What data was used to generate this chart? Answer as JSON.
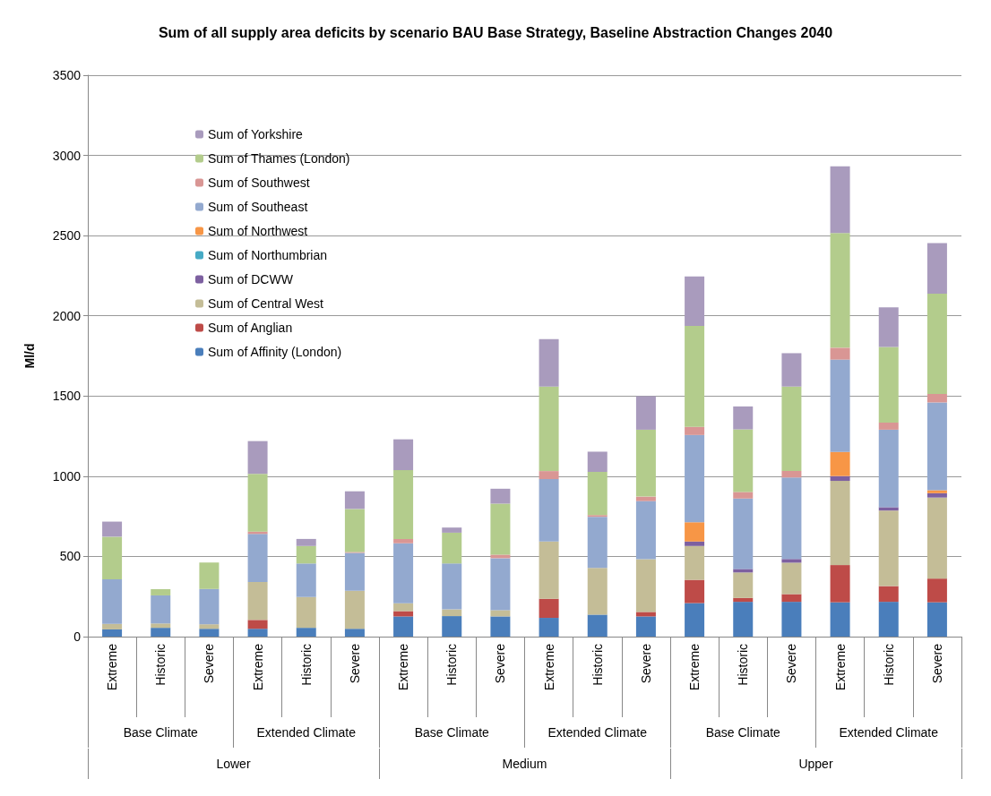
{
  "chart_data": {
    "type": "bar",
    "stacked": true,
    "title": "Sum of all supply area deficits by scenario BAU Base Strategy, Baseline Abstraction Changes 2040",
    "ylabel": "Ml/d",
    "categories": [
      "Extreme",
      "Historic",
      "Severe",
      "Extreme",
      "Historic",
      "Severe",
      "Extreme",
      "Historic",
      "Severe",
      "Extreme",
      "Historic",
      "Severe",
      "Extreme",
      "Historic",
      "Severe",
      "Extreme",
      "Historic",
      "Severe"
    ],
    "annotations": [
      "Base Climate",
      "Extended Climate",
      "Base Climate",
      "Extended Climate",
      "Base Climate",
      "Extended Climate",
      "Lower",
      "Medium",
      "Upper"
    ],
    "series": [
      {
        "name": "Sum of Affinity (London)",
        "color": "#4a7ebb",
        "values": [
          45,
          55,
          49,
          49,
          55,
          49,
          126,
          128,
          126,
          117,
          137,
          126,
          209,
          217,
          217,
          214,
          217,
          214
        ]
      },
      {
        "name": "Sum of Anglian",
        "color": "#be4b48",
        "values": [
          0,
          0,
          0,
          55,
          0,
          0,
          33,
          0,
          0,
          119,
          null,
          28,
          145,
          24,
          48,
          232,
          98,
          148
        ]
      },
      {
        "name": "Sum of Central West",
        "color": "#c4bd97",
        "values": [
          35,
          27,
          28,
          236,
          192,
          237,
          49,
          42,
          39,
          357,
          292,
          329,
          211,
          159,
          196,
          525,
          471,
          505
        ]
      },
      {
        "name": "Sum of DCWW",
        "color": "#7d60a0",
        "values": [
          0,
          0,
          0,
          0,
          0,
          0,
          0,
          0,
          0,
          0,
          0,
          0,
          28,
          22,
          23,
          30,
          21,
          27
        ]
      },
      {
        "name": "Sum of Northumbrian",
        "color": "#46aac5",
        "values": [
          0,
          0,
          0,
          0,
          0,
          0,
          0,
          0,
          0,
          0,
          0,
          0,
          0,
          0,
          0,
          0,
          0,
          0
        ]
      },
      {
        "name": "Sum of Northwest",
        "color": "#f79646",
        "values": [
          0,
          0,
          0,
          0,
          0,
          0,
          0,
          0,
          0,
          0,
          0,
          0,
          120,
          0,
          0,
          151,
          0,
          19
        ]
      },
      {
        "name": "Sum of Southeast",
        "color": "#93a9cf",
        "values": [
          277,
          175,
          220,
          300,
          209,
          236,
          374,
          286,
          324,
          389,
          318,
          362,
          544,
          439,
          508,
          575,
          483,
          547
        ]
      },
      {
        "name": "Sum of Southwest",
        "color": "#d99694",
        "values": [
          null,
          0,
          0,
          15,
          0,
          6,
          27,
          0,
          22,
          50,
          11,
          28,
          51,
          41,
          41,
          74,
          44,
          53
        ]
      },
      {
        "name": "Sum of Thames (London)",
        "color": "#b3cc8c",
        "values": [
          266,
          39,
          165,
          360,
          109,
          268,
          429,
          192,
          318,
          527,
          269,
          417,
          629,
          390,
          526,
          715,
          472,
          625
        ]
      },
      {
        "name": "Sum of Yorkshire",
        "color": "#a99bbd",
        "values": [
          94,
          0,
          0,
          204,
          44,
          110,
          192,
          32,
          93,
          296,
          126,
          209,
          308,
          143,
          208,
          416,
          247,
          316
        ]
      }
    ],
    "ylim": [
      0,
      3500
    ],
    "yticks": [
      0,
      500,
      1000,
      1500,
      2000,
      2500,
      3000,
      3500
    ],
    "grid": "y",
    "legend": "top left"
  }
}
